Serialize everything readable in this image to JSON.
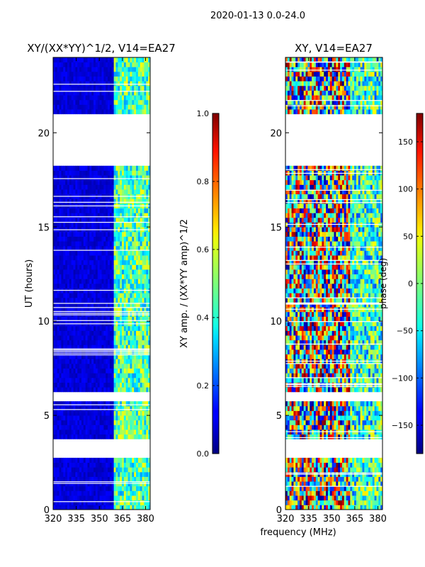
{
  "figure_title": "2020-01-13 0.0-24.0",
  "chart_data": [
    {
      "type": "heatmap",
      "title": "XY/(XX*YY)^1/2, V14=EA27",
      "xlabel": "",
      "ylabel": "UT (hours)",
      "xlim": [
        320,
        383
      ],
      "ylim": [
        0,
        24
      ],
      "xticks": [
        320,
        335,
        350,
        365,
        380
      ],
      "yticks": [
        0,
        5,
        10,
        15,
        20
      ],
      "colorbar": {
        "label": "XY amp. / (XX*YY amp)^1/2",
        "range": [
          0.0,
          1.0
        ],
        "ticks": [
          "0.0",
          "0.2",
          "0.4",
          "0.6",
          "0.8",
          "1.0"
        ],
        "colormap": "jet"
      },
      "low_freq_band_mhz": [
        320,
        360
      ],
      "high_freq_band_mhz": [
        360,
        383
      ],
      "typical_value_low_band": 0.05,
      "typical_value_high_band": 0.45,
      "data_gaps_ut_hours": [
        [
          2.7,
          3.7
        ],
        [
          5.7,
          6.3
        ],
        [
          18.2,
          21.0
        ],
        [
          21.9,
          22.1
        ],
        [
          23.4,
          23.6
        ]
      ]
    },
    {
      "type": "heatmap",
      "title": "XY, V14=EA27",
      "xlabel": "frequency (MHz)",
      "ylabel": "",
      "xlim": [
        320,
        383
      ],
      "ylim": [
        0,
        24
      ],
      "xticks": [
        320,
        335,
        350,
        365,
        380
      ],
      "yticks": [
        0,
        5,
        10,
        15,
        20
      ],
      "colorbar": {
        "label": "phase (deg)",
        "range": [
          -180,
          180
        ],
        "ticks": [
          "-150",
          "-100",
          "-50",
          "0",
          "50",
          "100",
          "150"
        ],
        "colormap": "jet"
      },
      "data_gaps_ut_hours": [
        [
          2.7,
          3.7
        ],
        [
          5.7,
          6.3
        ],
        [
          18.2,
          21.0
        ],
        [
          21.9,
          22.1
        ],
        [
          23.4,
          23.6
        ]
      ]
    }
  ]
}
